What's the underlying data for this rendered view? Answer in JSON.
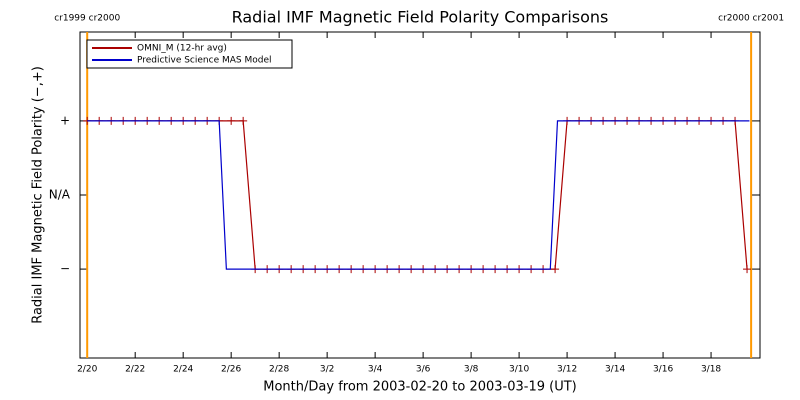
{
  "chart_data": {
    "type": "line",
    "title": "Radial IMF Magnetic Field Polarity Comparisons",
    "x_label": "Month/Day from 2003-02-20 to 2003-03-19 (UT)",
    "y_label": "Radial IMF Magnetic Field Polarity (−,+)",
    "xlim": [
      -0.3,
      28.04
    ],
    "ylim": [
      -2.2,
      2.2
    ],
    "xticks": [
      {
        "value": 0,
        "label": "2/20"
      },
      {
        "value": 2,
        "label": "2/22"
      },
      {
        "value": 4,
        "label": "2/24"
      },
      {
        "value": 6,
        "label": "2/26"
      },
      {
        "value": 8,
        "label": "2/28"
      },
      {
        "value": 10,
        "label": "3/2"
      },
      {
        "value": 12,
        "label": "3/4"
      },
      {
        "value": 14,
        "label": "3/6"
      },
      {
        "value": 16,
        "label": "3/8"
      },
      {
        "value": 18,
        "label": "3/10"
      },
      {
        "value": 20,
        "label": "3/12"
      },
      {
        "value": 22,
        "label": "3/14"
      },
      {
        "value": 24,
        "label": "3/16"
      },
      {
        "value": 26,
        "label": "3/18"
      }
    ],
    "yticks": [
      {
        "value": 1,
        "label": "+"
      },
      {
        "value": 0,
        "label": "N/A"
      },
      {
        "value": -1,
        "label": "−"
      }
    ],
    "legend": "upper left",
    "series": [
      {
        "name": "OMNI_M (12-hr avg)",
        "color": "#aa0000",
        "marker": "+",
        "x": [
          0,
          0.5,
          1,
          1.5,
          2,
          2.5,
          3,
          3.5,
          4,
          4.5,
          5,
          5.5,
          6,
          6.5,
          7,
          7.5,
          8,
          8.5,
          9,
          9.5,
          10,
          10.5,
          11,
          11.5,
          12,
          12.5,
          13,
          13.5,
          14,
          14.5,
          15,
          15.5,
          16,
          16.5,
          17,
          17.5,
          18,
          18.5,
          19,
          19.5,
          20,
          20.5,
          21,
          21.5,
          22,
          22.5,
          23,
          23.5,
          24,
          24.5,
          25,
          25.5,
          26,
          26.5,
          27,
          27.5
        ],
        "values": [
          1,
          1,
          1,
          1,
          1,
          1,
          1,
          1,
          1,
          1,
          1,
          1,
          1,
          1,
          -1,
          -1,
          -1,
          -1,
          -1,
          -1,
          -1,
          -1,
          -1,
          -1,
          -1,
          -1,
          -1,
          -1,
          -1,
          -1,
          -1,
          -1,
          -1,
          -1,
          -1,
          -1,
          -1,
          -1,
          -1,
          -1,
          1,
          1,
          1,
          1,
          1,
          1,
          1,
          1,
          1,
          1,
          1,
          1,
          1,
          1,
          1,
          -1
        ]
      },
      {
        "name": "Predictive Science MAS Model",
        "color": "#0000cc",
        "x": [
          0,
          5.5,
          5.8,
          19.3,
          19.6,
          27.6
        ],
        "values": [
          1,
          1,
          -1,
          -1,
          1,
          1
        ]
      }
    ],
    "annotations": [
      {
        "x": 0,
        "text": "cr1999 cr2000",
        "color": "#ff9900"
      },
      {
        "x": 27.67,
        "text": "cr2000 cr2001",
        "color": "#ff9900"
      }
    ]
  }
}
